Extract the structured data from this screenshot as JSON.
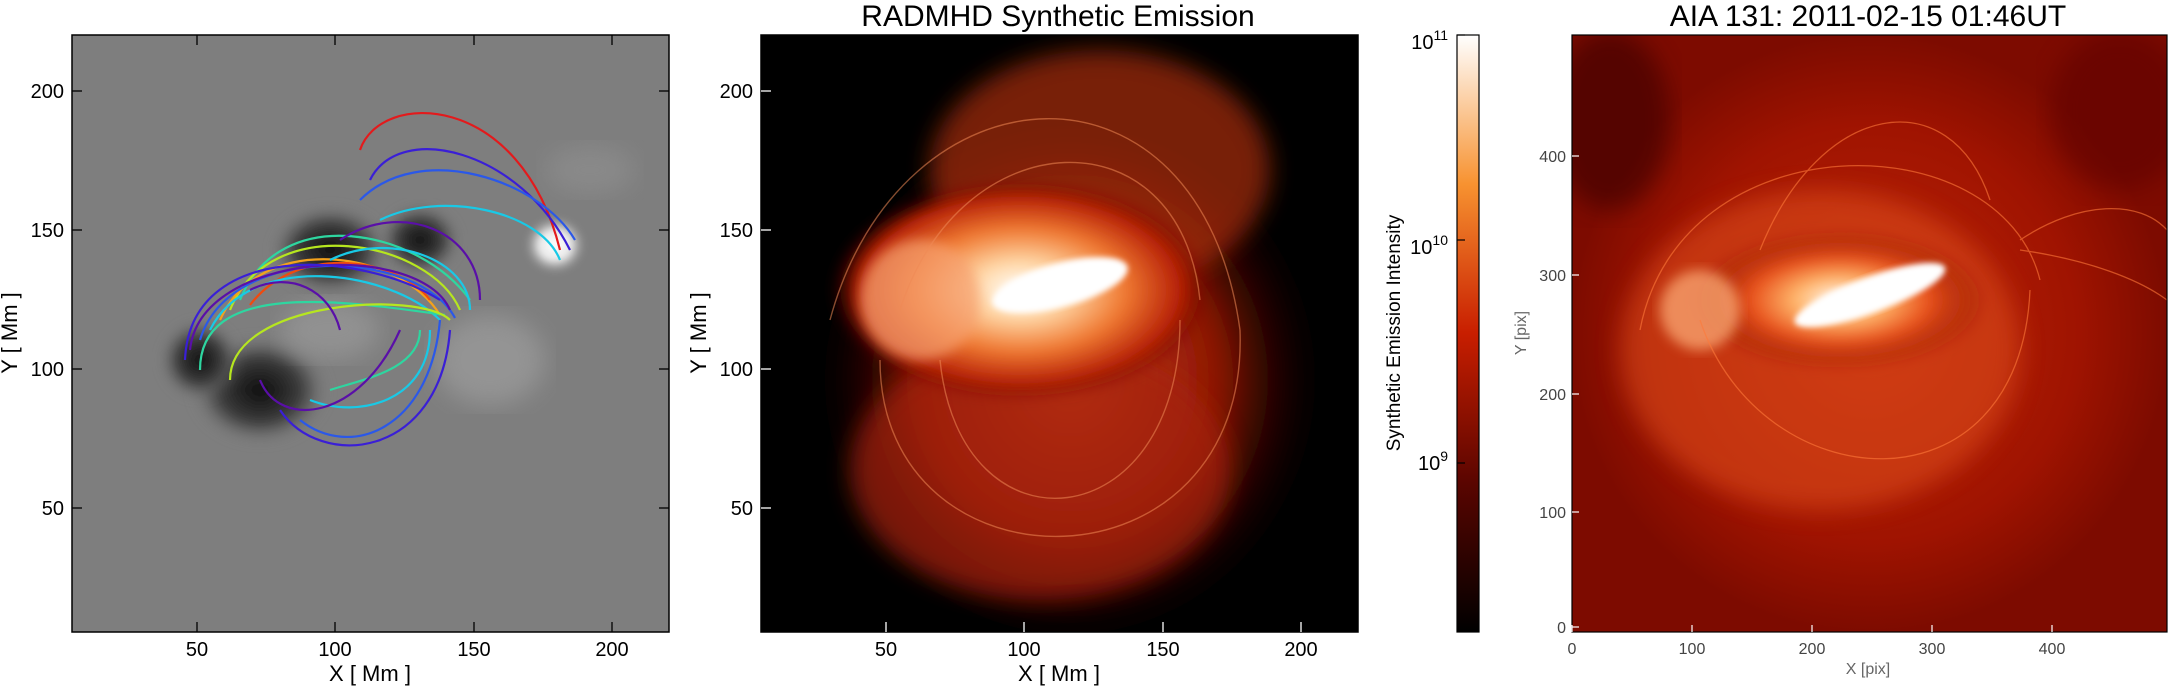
{
  "panel1": {
    "xlabel": "X [ Mm ]",
    "ylabel": "Y [ Mm ]",
    "xticks": [
      "50",
      "100",
      "150",
      "200"
    ],
    "yticks": [
      "50",
      "100",
      "150",
      "200"
    ]
  },
  "panel2": {
    "title": "RADMHD Synthetic Emission",
    "xlabel": "X [ Mm ]",
    "ylabel": "Y [ Mm ]",
    "xticks": [
      "50",
      "100",
      "150",
      "200"
    ],
    "yticks": [
      "50",
      "100",
      "150",
      "200"
    ]
  },
  "colorbar": {
    "label": "Synthetic Emission Intensity",
    "ticks": [
      {
        "base": "10",
        "exp": "11"
      },
      {
        "base": "10",
        "exp": "10"
      },
      {
        "base": "10",
        "exp": "9"
      }
    ]
  },
  "panel3": {
    "title": "AIA 131: 2011-02-15  01:46UT",
    "xlabel": "X [pix]",
    "ylabel": "Y [pix]",
    "xticks": [
      "0",
      "100",
      "200",
      "300",
      "400"
    ],
    "yticks": [
      "0",
      "100",
      "200",
      "300",
      "400"
    ]
  },
  "colors": {
    "field_lines": [
      "#e31a1c",
      "#3a1fd6",
      "#5a0fa8",
      "#2b58e8",
      "#19c9e6",
      "#2ed6a0",
      "#b6e61f",
      "#f4a21c",
      "#f04a0e"
    ],
    "emission_low": "#000000",
    "emission_mid": "#c81e00",
    "emission_high": "#ffffff"
  }
}
